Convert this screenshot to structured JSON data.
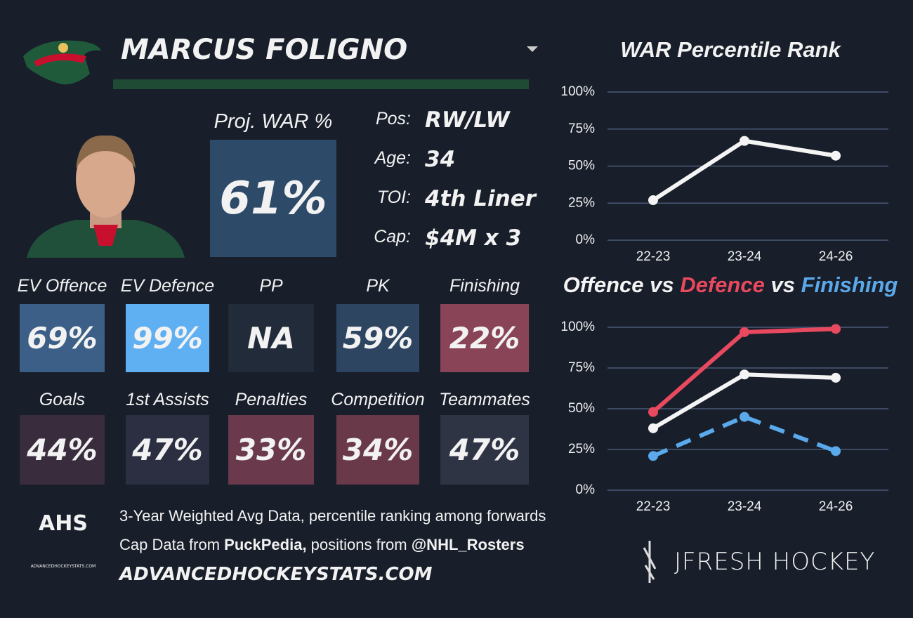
{
  "header": {
    "player": "MARCUS FOLIGNO"
  },
  "projection": {
    "label": "Proj. WAR %",
    "value": "61%"
  },
  "info": [
    {
      "label": "Pos:",
      "value": "RW/LW"
    },
    {
      "label": "Age:",
      "value": "34"
    },
    {
      "label": "TOI:",
      "value": "4th Liner"
    },
    {
      "label": "Cap:",
      "value": "$4M x 3"
    }
  ],
  "tiles": [
    [
      {
        "label": "EV Offence",
        "value": "69%",
        "color": "#3b5f86"
      },
      {
        "label": "EV Defence",
        "value": "99%",
        "color": "#5fb0f2"
      },
      {
        "label": "PP",
        "value": "NA",
        "color": "#222b39"
      },
      {
        "label": "PK",
        "value": "59%",
        "color": "#2d4560"
      },
      {
        "label": "Finishing",
        "value": "22%",
        "color": "#8a4457"
      }
    ],
    [
      {
        "label": "Goals",
        "value": "44%",
        "color": "#392c3d"
      },
      {
        "label": "1st Assists",
        "value": "47%",
        "color": "#2b2f41"
      },
      {
        "label": "Penalties",
        "value": "33%",
        "color": "#6a3a4c"
      },
      {
        "label": "Competition",
        "value": "34%",
        "color": "#69394a"
      },
      {
        "label": "Teammates",
        "value": "47%",
        "color": "#2f3445"
      }
    ]
  ],
  "footer": {
    "logo": "AHS",
    "logo_site": "ADVANCEDHOCKEYSTATS.COM",
    "line1": "3-Year Weighted Avg Data, percentile ranking among forwards",
    "line2": [
      "Cap Data from ",
      "PuckPedia,",
      " positions from ",
      "@NHL_Rosters"
    ],
    "site": "ADVANCEDHOCKEYSTATS.COM",
    "brand": "JFRESH HOCKEY"
  },
  "chart_data": [
    {
      "type": "line",
      "title": "WAR Percentile Rank",
      "categories": [
        "22-23",
        "23-24",
        "24-26"
      ],
      "series": [
        {
          "name": "WAR",
          "color": "#f4f4f4",
          "values": [
            27,
            67,
            57
          ]
        }
      ],
      "ylim": [
        0,
        100
      ],
      "yticks": [
        {
          "value": 0,
          "label": "0%"
        },
        {
          "value": 25,
          "label": "25%"
        },
        {
          "value": 50,
          "label": "50%"
        },
        {
          "value": 75,
          "label": "75%"
        },
        {
          "value": 100,
          "label": "100%"
        }
      ],
      "grid": true
    },
    {
      "type": "line",
      "legend_separator": "vs",
      "categories": [
        "22-23",
        "23-24",
        "24-26"
      ],
      "series": [
        {
          "name": "Offence",
          "color": "#f4f4f4",
          "values": [
            38,
            71,
            69
          ]
        },
        {
          "name": "Defence",
          "color": "#e9495e",
          "values": [
            48,
            97,
            99
          ]
        },
        {
          "name": "Finishing",
          "color": "#5aa9ea",
          "values": [
            21,
            45,
            24
          ],
          "dashed": true
        }
      ],
      "ylim": [
        0,
        100
      ],
      "yticks": [
        {
          "value": 0,
          "label": "0%"
        },
        {
          "value": 25,
          "label": "25%"
        },
        {
          "value": 50,
          "label": "50%"
        },
        {
          "value": 75,
          "label": "75%"
        },
        {
          "value": 100,
          "label": "100%"
        }
      ],
      "grid": true
    }
  ]
}
